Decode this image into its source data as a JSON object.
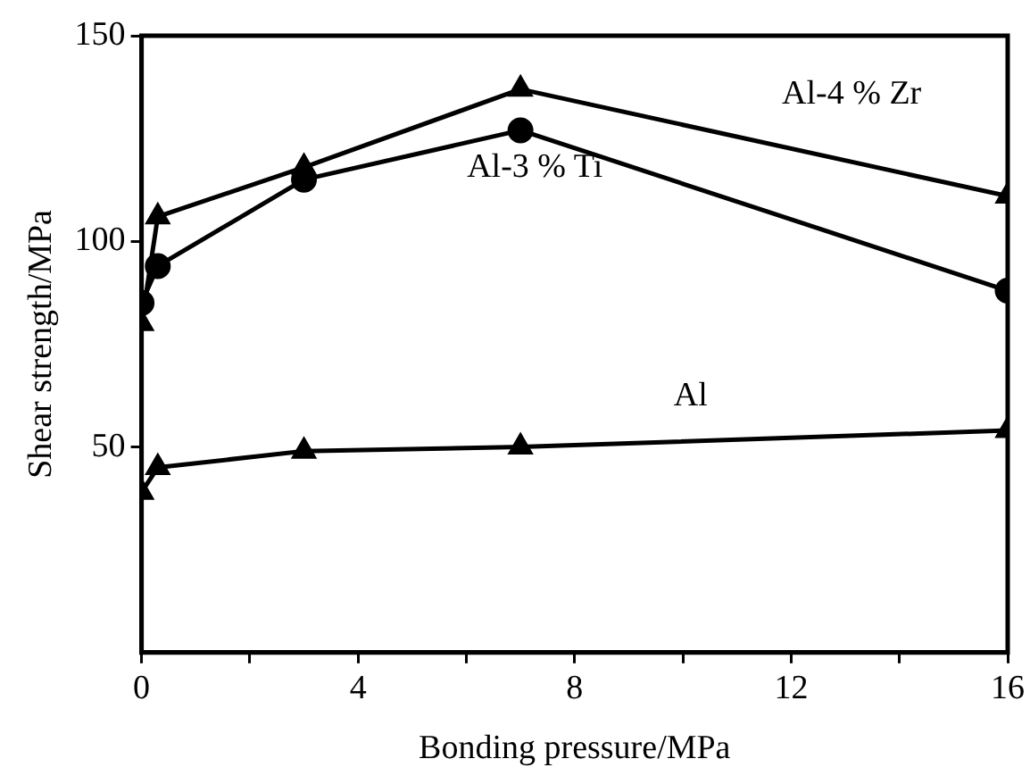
{
  "chart_data": {
    "type": "line",
    "xlabel": "Bonding pressure/MPa",
    "ylabel": "Shear strength/MPa",
    "xlim": [
      0,
      16
    ],
    "xticks": [
      0,
      {
        "value": 2,
        "label": null
      },
      4,
      {
        "value": 6,
        "label": null
      },
      8,
      {
        "value": 10,
        "label": null
      },
      12,
      {
        "value": 14,
        "label": null
      },
      16
    ],
    "ylim": [
      0,
      150
    ],
    "yticks": [
      50,
      100,
      150
    ],
    "grid": false,
    "legend": false,
    "series": [
      {
        "name": "Al-4 % Zr",
        "color": "#000000",
        "marker": "triangle",
        "x": [
          0,
          0.3,
          3,
          7,
          16
        ],
        "values": [
          80,
          106,
          118,
          137,
          111
        ]
      },
      {
        "name": "Al-3 % Ti",
        "color": "#000000",
        "marker": "circle",
        "x": [
          0,
          0.3,
          3,
          7,
          16
        ],
        "values": [
          85,
          94,
          115,
          127,
          88
        ]
      },
      {
        "name": "Al",
        "color": "#000000",
        "marker": "triangle",
        "x": [
          0,
          0.3,
          3,
          7,
          16
        ],
        "values": [
          39,
          45,
          49,
          50,
          54
        ]
      }
    ]
  }
}
